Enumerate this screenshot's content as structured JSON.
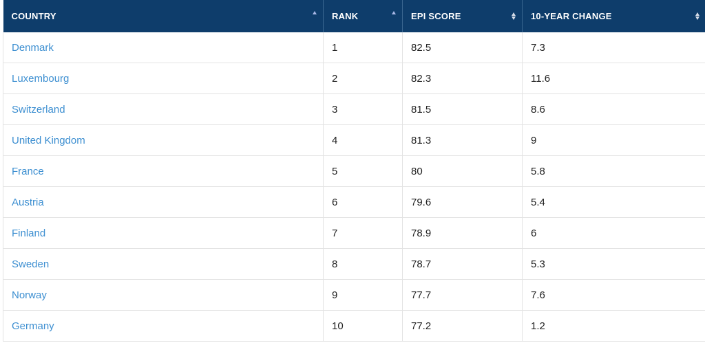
{
  "table": {
    "headers": [
      {
        "label": "COUNTRY",
        "sort": "ascending"
      },
      {
        "label": "RANK",
        "sort": "ascending"
      },
      {
        "label": "EPI SCORE",
        "sort": "none"
      },
      {
        "label": "10-YEAR CHANGE",
        "sort": "none"
      }
    ],
    "rows": [
      {
        "country": "Denmark",
        "rank": "1",
        "epi_score": "82.5",
        "change": "7.3"
      },
      {
        "country": "Luxembourg",
        "rank": "2",
        "epi_score": "82.3",
        "change": "11.6"
      },
      {
        "country": "Switzerland",
        "rank": "3",
        "epi_score": "81.5",
        "change": "8.6"
      },
      {
        "country": "United Kingdom",
        "rank": "4",
        "epi_score": "81.3",
        "change": "9"
      },
      {
        "country": "France",
        "rank": "5",
        "epi_score": "80",
        "change": "5.8"
      },
      {
        "country": "Austria",
        "rank": "6",
        "epi_score": "79.6",
        "change": "5.4"
      },
      {
        "country": "Finland",
        "rank": "7",
        "epi_score": "78.9",
        "change": "6"
      },
      {
        "country": "Sweden",
        "rank": "8",
        "epi_score": "78.7",
        "change": "5.3"
      },
      {
        "country": "Norway",
        "rank": "9",
        "epi_score": "77.7",
        "change": "7.6"
      },
      {
        "country": "Germany",
        "rank": "10",
        "epi_score": "77.2",
        "change": "1.2"
      }
    ]
  },
  "colors": {
    "header_bg": "#0e3d6b",
    "header_text": "#ffffff",
    "link": "#3d8fd1",
    "sort_active": "#a9b8e6"
  },
  "icons": {
    "sort_ascending": "sort-ascending-icon",
    "sort_both": "sort-both-icon"
  }
}
